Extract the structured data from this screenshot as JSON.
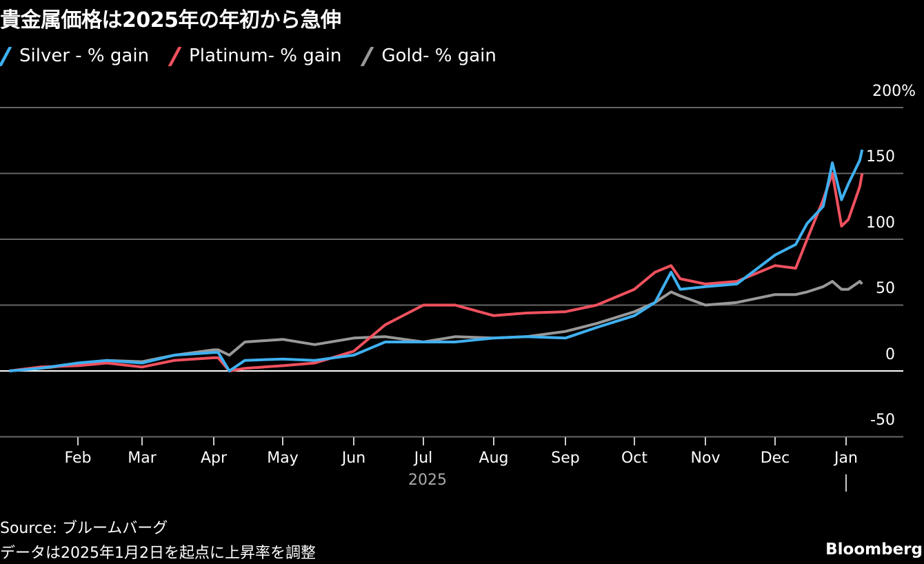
{
  "title": "貴金属価格は2025年の年初から急伸",
  "legend": [
    {
      "label": "Silver - % gain",
      "color": "#3fb0f0"
    },
    {
      "label": "Platinum- % gain",
      "color": "#f0515e"
    },
    {
      "label": "Gold- % gain",
      "color": "#999999"
    }
  ],
  "y_axis": {
    "labels": [
      "200%",
      "150",
      "100",
      "50",
      "0",
      "-50"
    ]
  },
  "x_axis": {
    "labels": [
      "Feb",
      "Mar",
      "Apr",
      "May",
      "Jun",
      "Jul",
      "Aug",
      "Sep",
      "Oct",
      "Nov",
      "Dec",
      "Jan"
    ],
    "year": "2025"
  },
  "footer": {
    "source": "Source: ブルームバーグ",
    "note": "データは2025年1月2日を起点に上昇率を調整",
    "brand": "Bloomberg"
  },
  "chart_data": {
    "type": "line",
    "title": "貴金属価格は2025年の年初から急伸",
    "xlabel": "2025",
    "ylabel": "% gain",
    "ylim": [
      -50,
      200
    ],
    "yticks": [
      -50,
      0,
      50,
      100,
      150,
      200
    ],
    "grid": true,
    "legend_position": "top-left",
    "x_ticks": [
      "Feb",
      "Mar",
      "Apr",
      "May",
      "Jun",
      "Jul",
      "Aug",
      "Sep",
      "Oct",
      "Nov",
      "Dec",
      "Jan"
    ],
    "x": [
      "Jan 2",
      "Jan 15",
      "Feb 1",
      "Feb 15",
      "Mar 1",
      "Mar 15",
      "Apr 1",
      "Apr 3",
      "Apr 8",
      "Apr 15",
      "May 1",
      "May 15",
      "Jun 1",
      "Jun 15",
      "Jul 1",
      "Jul 15",
      "Aug 1",
      "Aug 15",
      "Sep 1",
      "Sep 15",
      "Oct 1",
      "Oct 10",
      "Oct 17",
      "Oct 21",
      "Nov 1",
      "Nov 15",
      "Dec 1",
      "Dec 10",
      "Dec 15",
      "Dec 22",
      "Dec 26",
      "Dec 30",
      "Jan 2",
      "Jan 7",
      "Jan 8"
    ],
    "series": [
      {
        "name": "Silver - % gain",
        "color": "#3fb0f0",
        "values": [
          0,
          2,
          6,
          8,
          6,
          12,
          14,
          14,
          0,
          8,
          9,
          8,
          12,
          22,
          22,
          22,
          25,
          26,
          25,
          33,
          42,
          52,
          75,
          62,
          64,
          66,
          88,
          96,
          112,
          125,
          158,
          130,
          142,
          160,
          168
        ]
      },
      {
        "name": "Platinum- % gain",
        "color": "#f0515e",
        "values": [
          0,
          3,
          4,
          6,
          3,
          8,
          10,
          10,
          0,
          2,
          4,
          6,
          15,
          35,
          50,
          50,
          42,
          44,
          45,
          50,
          62,
          75,
          80,
          70,
          66,
          68,
          80,
          78,
          100,
          130,
          150,
          110,
          115,
          140,
          150
        ]
      },
      {
        "name": "Gold- % gain",
        "color": "#999999",
        "values": [
          0,
          2,
          5,
          8,
          7,
          12,
          16,
          16,
          12,
          22,
          24,
          20,
          25,
          26,
          22,
          26,
          25,
          26,
          30,
          36,
          45,
          52,
          60,
          57,
          50,
          52,
          58,
          58,
          60,
          64,
          68,
          62,
          62,
          68,
          66
        ]
      }
    ]
  }
}
